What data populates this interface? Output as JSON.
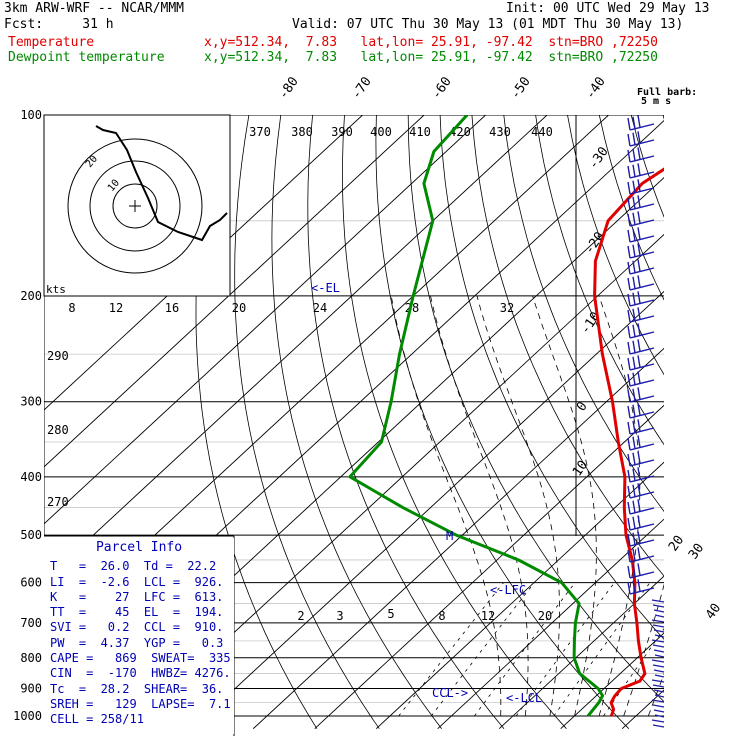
{
  "header": {
    "model": "3km ARW-WRF -- NCAR/MMM",
    "init": "Init: 00 UTC Wed 29 May 13",
    "fcst": "Fcst:     31 h",
    "valid": "Valid: 07 UTC Thu 30 May 13 (01 MDT Thu 30 May 13)",
    "temp_label": "Temperature",
    "temp_info": "x,y=512.34,  7.83   lat,lon= 25.91, -97.42  stn=BRO ,72250",
    "dew_label": "Dewpoint temperature",
    "dew_info": "x,y=512.34,  7.83   lat,lon= 25.91, -97.42  stn=BRO ,72250"
  },
  "colors": {
    "temperature": "#e00000",
    "dewpoint": "#008a00",
    "parcel_text": "#0000b4",
    "wind_barbs": "#1c1ca8",
    "grid": "#000000"
  },
  "wind": {
    "label_top": "Full barb:",
    "label_bottom": "5 m s"
  },
  "hodograph": {
    "units": "kts",
    "ring_labels": [
      "10",
      "20"
    ],
    "speed_ticks": [
      "8",
      "12",
      "16",
      "20",
      "24",
      "28",
      "32"
    ]
  },
  "parcel": {
    "title": "Parcel  Info",
    "rows": [
      "T   =  26.0  Td =  22.2",
      "LI  =  -2.6  LCL =  926.",
      "K   =    27  LFC =  613.",
      "TT  =    45  EL  =  194.",
      "SVI =   0.2  CCL =  910.",
      "PW  =  4.37  YGP =   0.3",
      "CAPE =   869  SWEAT=  335",
      "CIN  =  -170  HWBZ= 4276.",
      "Tc  =  28.2  SHEAR=  36.",
      "SREH =   129  LAPSE=  7.1",
      "CELL = 258/11"
    ]
  },
  "chart_data": {
    "type": "line",
    "title": "",
    "xlabel": "",
    "ylabel": "",
    "pressure_ticks": [
      100,
      200,
      300,
      400,
      500,
      600,
      700,
      800,
      900,
      1000
    ],
    "isotherm_labels": [
      -80,
      -70,
      -60,
      -50,
      -40,
      -30,
      -20,
      -10,
      0,
      10,
      20,
      30,
      40
    ],
    "theta_labels": [
      370,
      380,
      390,
      400,
      410,
      420,
      430,
      440
    ],
    "theta_side_labels": [
      290,
      280,
      270
    ],
    "mixing_ratio_labels": [
      2,
      3,
      5,
      8,
      12,
      20
    ],
    "annotations": {
      "el": "<-EL",
      "lfc": "<-LFC",
      "lcl": "<-LCL",
      "ccl": "CCL->",
      "m": "M"
    },
    "series": [
      {
        "name": "Temperature",
        "points": [
          [
            1000,
            26.0
          ],
          [
            975,
            25.2
          ],
          [
            950,
            23.6
          ],
          [
            925,
            23.0
          ],
          [
            900,
            22.8
          ],
          [
            875,
            24.5
          ],
          [
            850,
            24.0
          ],
          [
            800,
            20.6
          ],
          [
            750,
            17.2
          ],
          [
            700,
            13.8
          ],
          [
            650,
            10.0
          ],
          [
            600,
            6.4
          ],
          [
            550,
            2.0
          ],
          [
            500,
            -3.4
          ],
          [
            450,
            -8.5
          ],
          [
            400,
            -13.8
          ],
          [
            350,
            -21.0
          ],
          [
            300,
            -29.0
          ],
          [
            250,
            -39.0
          ],
          [
            200,
            -50.5
          ],
          [
            175,
            -56.5
          ],
          [
            150,
            -61.5
          ],
          [
            130,
            -62.5
          ],
          [
            115,
            -60.2
          ],
          [
            100,
            -57.0
          ]
        ]
      },
      {
        "name": "Dewpoint temperature",
        "points": [
          [
            1000,
            22.2
          ],
          [
            950,
            21.6
          ],
          [
            925,
            21.0
          ],
          [
            900,
            19.0
          ],
          [
            850,
            13.4
          ],
          [
            800,
            9.7
          ],
          [
            750,
            6.8
          ],
          [
            700,
            3.8
          ],
          [
            650,
            1.0
          ],
          [
            600,
            -5.5
          ],
          [
            550,
            -16.5
          ],
          [
            500,
            -31.0
          ],
          [
            450,
            -44.5
          ],
          [
            400,
            -58.5
          ],
          [
            350,
            -59.5
          ],
          [
            300,
            -65.0
          ],
          [
            250,
            -72.0
          ],
          [
            200,
            -80.0
          ],
          [
            150,
            -90.0
          ],
          [
            130,
            -98.0
          ],
          [
            115,
            -102.0
          ],
          [
            100,
            -103.0
          ]
        ]
      }
    ]
  }
}
